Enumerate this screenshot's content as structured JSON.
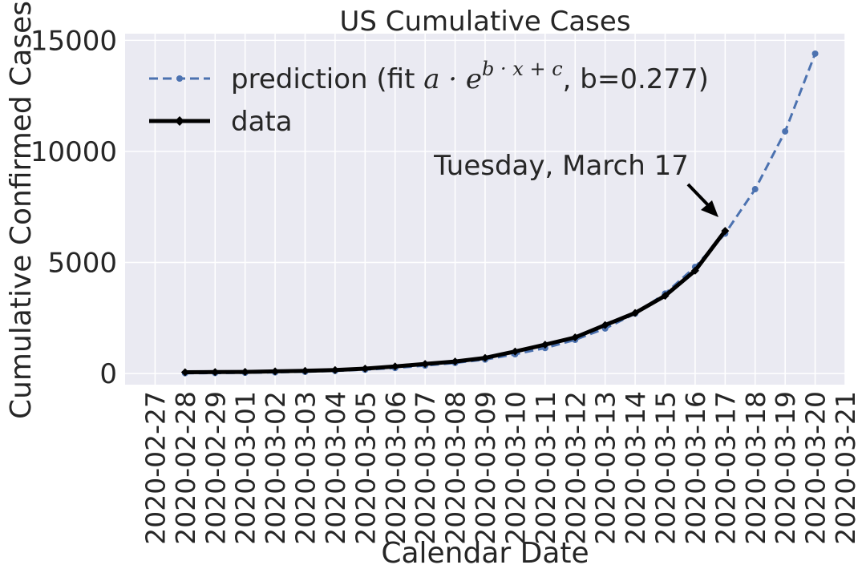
{
  "chart_data": {
    "type": "line",
    "title": "US Cumulative Cases",
    "xlabel": "Calendar Date",
    "ylabel": "Cumulative Confirmed Cases",
    "x_ticks": [
      "2020-02-27",
      "2020-02-28",
      "2020-02-29",
      "2020-03-01",
      "2020-03-02",
      "2020-03-03",
      "2020-03-04",
      "2020-03-05",
      "2020-03-06",
      "2020-03-07",
      "2020-03-08",
      "2020-03-09",
      "2020-03-10",
      "2020-03-11",
      "2020-03-12",
      "2020-03-13",
      "2020-03-14",
      "2020-03-15",
      "2020-03-16",
      "2020-03-17",
      "2020-03-18",
      "2020-03-19",
      "2020-03-20",
      "2020-03-21"
    ],
    "y_ticks": [
      0,
      5000,
      10000,
      15000
    ],
    "y_tick_labels": [
      "0",
      "5000",
      "10000",
      "15000"
    ],
    "xlim": [
      "2020-02-26",
      "2020-03-21"
    ],
    "ylim": [
      -500,
      15300
    ],
    "grid": true,
    "legend_position": "top-left",
    "series": [
      {
        "name": "prediction (fit ",
        "legend_math": "a · e",
        "legend_math_sup": "b · x + c",
        "legend_suffix": ", b=0.277)",
        "style": "dashed",
        "color": "#4c72b0",
        "x": [
          "2020-02-28",
          "2020-02-29",
          "2020-03-01",
          "2020-03-02",
          "2020-03-03",
          "2020-03-04",
          "2020-03-05",
          "2020-03-06",
          "2020-03-07",
          "2020-03-08",
          "2020-03-09",
          "2020-03-10",
          "2020-03-11",
          "2020-03-12",
          "2020-03-13",
          "2020-03-14",
          "2020-03-15",
          "2020-03-16",
          "2020-03-17",
          "2020-03-18",
          "2020-03-19",
          "2020-03-20"
        ],
        "values": [
          15,
          24,
          35,
          55,
          80,
          120,
          175,
          250,
          360,
          480,
          630,
          870,
          1150,
          1520,
          2030,
          2700,
          3600,
          4800,
          6300,
          8300,
          10900,
          14400
        ]
      },
      {
        "name": "data",
        "style": "solid",
        "color": "#000000",
        "x": [
          "2020-02-28",
          "2020-02-29",
          "2020-03-01",
          "2020-03-02",
          "2020-03-03",
          "2020-03-04",
          "2020-03-05",
          "2020-03-06",
          "2020-03-07",
          "2020-03-08",
          "2020-03-09",
          "2020-03-10",
          "2020-03-11",
          "2020-03-12",
          "2020-03-13",
          "2020-03-14",
          "2020-03-15",
          "2020-03-16",
          "2020-03-17"
        ],
        "values": [
          60,
          68,
          75,
          100,
          124,
          158,
          221,
          319,
          435,
          541,
          704,
          994,
          1301,
          1630,
          2183,
          2727,
          3499,
          4632,
          6421
        ]
      }
    ],
    "annotation": {
      "text": "Tuesday, March 17",
      "target_x": "2020-03-17",
      "target_y": 6421
    }
  }
}
